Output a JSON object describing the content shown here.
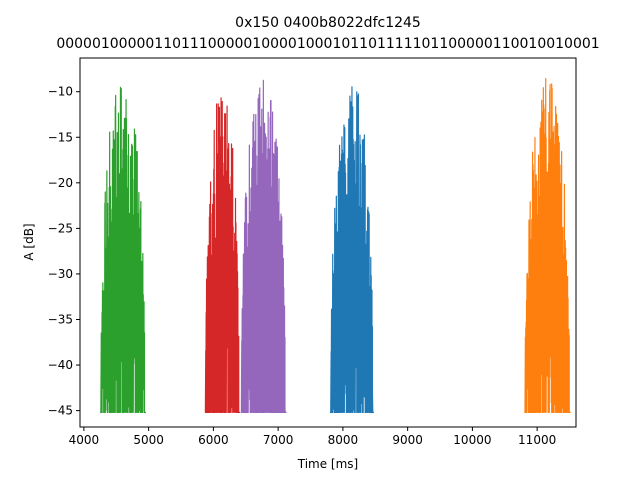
{
  "chart_data": {
    "type": "line",
    "title": "0x150 0400b8022dfc1245",
    "subtitle": "0000010000011011100000100001000101101111101100000110010010001",
    "xlabel": "Time [ms]",
    "ylabel": "A [dB]",
    "xlim": [
      3940,
      11600
    ],
    "ylim": [
      -46.8,
      -6.3
    ],
    "x_ticks": [
      4000,
      5000,
      6000,
      7000,
      8000,
      9000,
      10000,
      11000
    ],
    "x_tick_labels": [
      "4000",
      "5000",
      "6000",
      "7000",
      "8000",
      "9000",
      "10000",
      "11000"
    ],
    "y_ticks": [
      -10,
      -15,
      -20,
      -25,
      -30,
      -35,
      -40,
      -45
    ],
    "y_tick_labels": [
      "−10",
      "−15",
      "−20",
      "−25",
      "−30",
      "−35",
      "−40",
      "−45"
    ],
    "grid": false,
    "legend": "none",
    "series": [
      {
        "color": "#2ca02c",
        "x_start": 4250,
        "x_end": 4960,
        "floor": -45.2,
        "peak": -8.0,
        "seed": 11
      },
      {
        "color": "#d62728",
        "x_start": 5870,
        "x_end": 6410,
        "floor": -45.2,
        "peak": -9.5,
        "seed": 23
      },
      {
        "color": "#9467bd",
        "x_start": 6420,
        "x_end": 7130,
        "floor": -45.2,
        "peak": -8.3,
        "seed": 37
      },
      {
        "color": "#1f77b4",
        "x_start": 7800,
        "x_end": 8480,
        "floor": -45.2,
        "peak": -8.3,
        "seed": 53
      },
      {
        "color": "#ff7f0e",
        "x_start": 10800,
        "x_end": 11520,
        "floor": -45.2,
        "peak": -8.0,
        "seed": 71
      }
    ]
  }
}
